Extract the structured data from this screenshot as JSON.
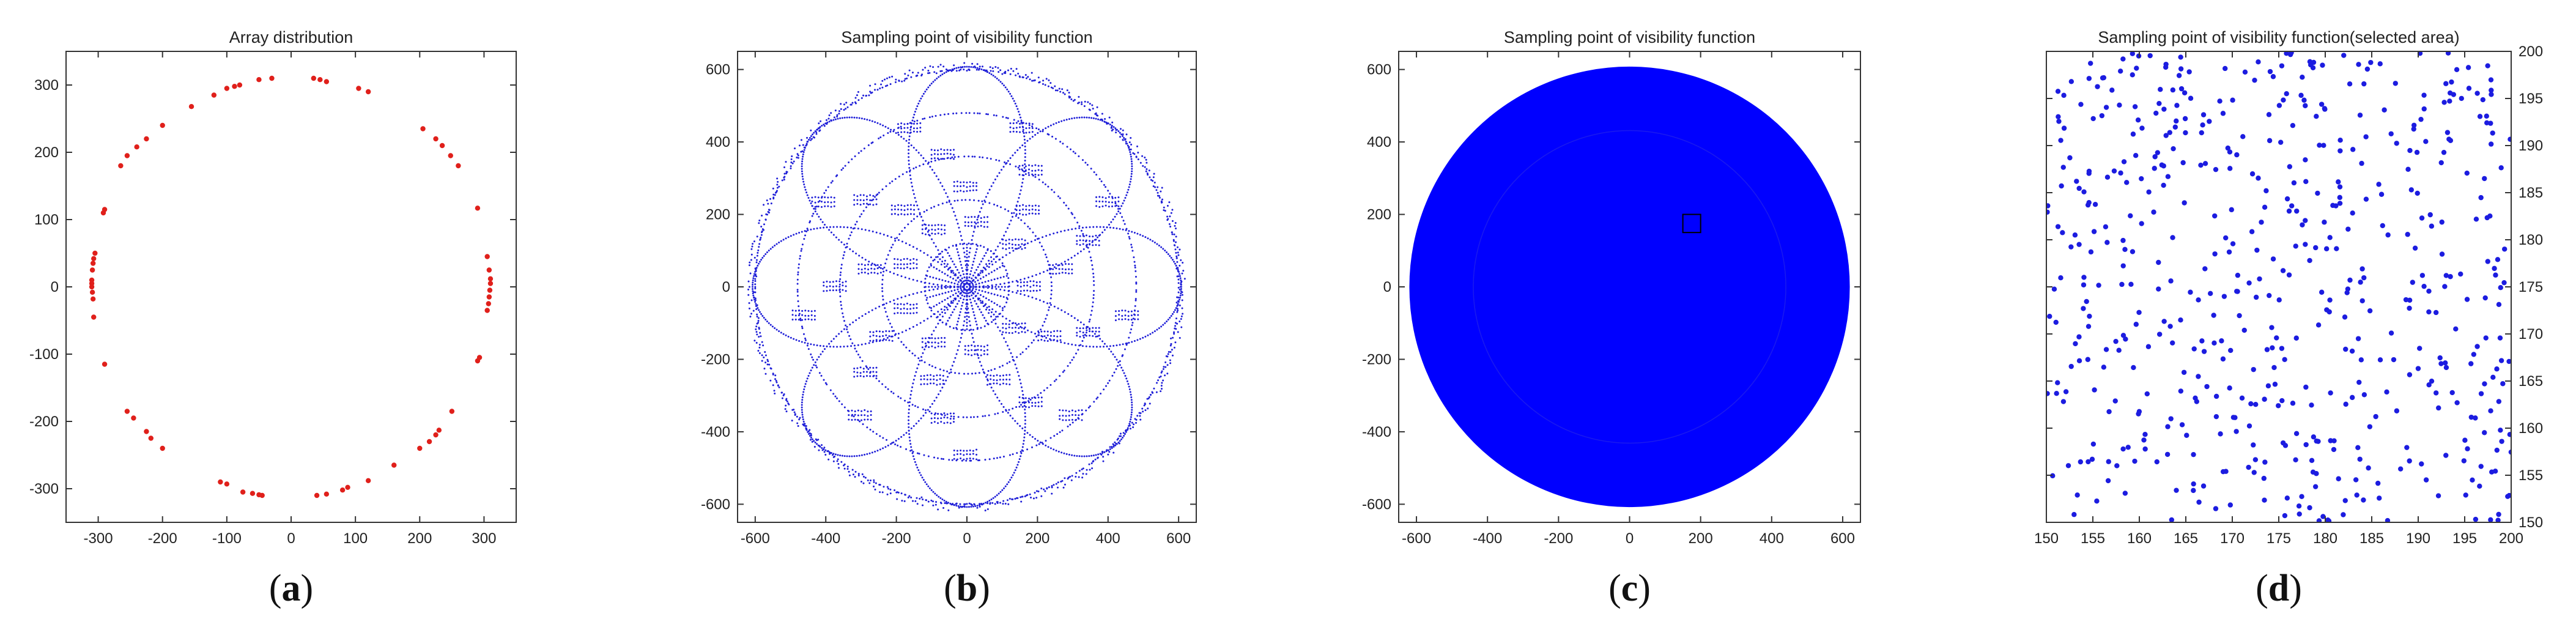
{
  "chart_data": [
    {
      "id": "a",
      "caption": "a",
      "type": "scatter",
      "title": "Array distribution",
      "xlim": [
        -350,
        350
      ],
      "ylim": [
        -350,
        350
      ],
      "xticks": [
        -300,
        -200,
        -100,
        0,
        100,
        200,
        300
      ],
      "yticks": [
        -300,
        -200,
        -100,
        0,
        100,
        200,
        300
      ],
      "y_axis_side": "left",
      "marker_color": "#e0201b",
      "points": [
        [
          -30,
          310
        ],
        [
          -50,
          308
        ],
        [
          -80,
          300
        ],
        [
          -88,
          298
        ],
        [
          -100,
          295
        ],
        [
          -120,
          285
        ],
        [
          -155,
          268
        ],
        [
          -200,
          240
        ],
        [
          -225,
          220
        ],
        [
          -240,
          208
        ],
        [
          -255,
          195
        ],
        [
          -265,
          180
        ],
        [
          -290,
          115
        ],
        [
          -292,
          110
        ],
        [
          -305,
          50
        ],
        [
          -307,
          42
        ],
        [
          -308,
          35
        ],
        [
          -309,
          25
        ],
        [
          -310,
          10
        ],
        [
          -310,
          5
        ],
        [
          -310,
          0
        ],
        [
          -309,
          -8
        ],
        [
          -308,
          -18
        ],
        [
          -307,
          -45
        ],
        [
          -290,
          -115
        ],
        [
          -255,
          -185
        ],
        [
          -245,
          -195
        ],
        [
          -225,
          -215
        ],
        [
          -218,
          -225
        ],
        [
          -200,
          -240
        ],
        [
          -110,
          -290
        ],
        [
          -100,
          -293
        ],
        [
          -75,
          -305
        ],
        [
          -60,
          -307
        ],
        [
          -50,
          -309
        ],
        [
          -45,
          -310
        ],
        [
          40,
          -310
        ],
        [
          55,
          -308
        ],
        [
          80,
          -302
        ],
        [
          88,
          -298
        ],
        [
          120,
          -288
        ],
        [
          160,
          -265
        ],
        [
          200,
          -240
        ],
        [
          215,
          -230
        ],
        [
          225,
          -220
        ],
        [
          230,
          -213
        ],
        [
          250,
          -185
        ],
        [
          290,
          -110
        ],
        [
          293,
          -105
        ],
        [
          305,
          -35
        ],
        [
          307,
          -25
        ],
        [
          308,
          -15
        ],
        [
          309,
          -5
        ],
        [
          310,
          5
        ],
        [
          310,
          12
        ],
        [
          308,
          25
        ],
        [
          305,
          45
        ],
        [
          290,
          117
        ],
        [
          260,
          180
        ],
        [
          248,
          195
        ],
        [
          235,
          210
        ],
        [
          225,
          220
        ],
        [
          205,
          235
        ],
        [
          120,
          290
        ],
        [
          105,
          295
        ],
        [
          55,
          305
        ],
        [
          45,
          308
        ],
        [
          35,
          310
        ]
      ]
    },
    {
      "id": "b",
      "caption": "b",
      "type": "scatter",
      "title": "Sampling point of visibility function",
      "xlim": [
        -650,
        650
      ],
      "ylim": [
        -650,
        650
      ],
      "xticks": [
        -600,
        -400,
        -200,
        0,
        200,
        400,
        600
      ],
      "yticks": [
        -600,
        -400,
        -200,
        0,
        200,
        400,
        600
      ],
      "y_axis_side": "left",
      "marker_color": "#2020d8",
      "sampling": {
        "radius": 620,
        "petals": 8,
        "rings": [
          120,
          240,
          360,
          480,
          600
        ]
      }
    },
    {
      "id": "c",
      "caption": "c",
      "type": "scatter",
      "title": "Sampling point of visibility function",
      "xlim": [
        -650,
        650
      ],
      "ylim": [
        -650,
        650
      ],
      "xticks": [
        -600,
        -400,
        -200,
        0,
        200,
        400,
        600
      ],
      "yticks": [
        -600,
        -400,
        -200,
        0,
        200,
        400,
        600
      ],
      "y_axis_side": "left",
      "marker_color": "#0000ff",
      "disk_radius": 620,
      "selected_area": {
        "x": [
          150,
          200
        ],
        "y": [
          150,
          200
        ]
      }
    },
    {
      "id": "d",
      "caption": "d",
      "type": "scatter",
      "title": "Sampling point of visibility function(selected area)",
      "xlim": [
        150,
        200
      ],
      "ylim": [
        150,
        200
      ],
      "xticks": [
        150,
        155,
        160,
        165,
        170,
        175,
        180,
        185,
        190,
        195,
        200
      ],
      "yticks": [
        150,
        155,
        160,
        165,
        170,
        175,
        180,
        185,
        190,
        195,
        200
      ],
      "y_axis_side": "right",
      "marker_color": "#1c1ce0",
      "point_count": 560
    }
  ]
}
